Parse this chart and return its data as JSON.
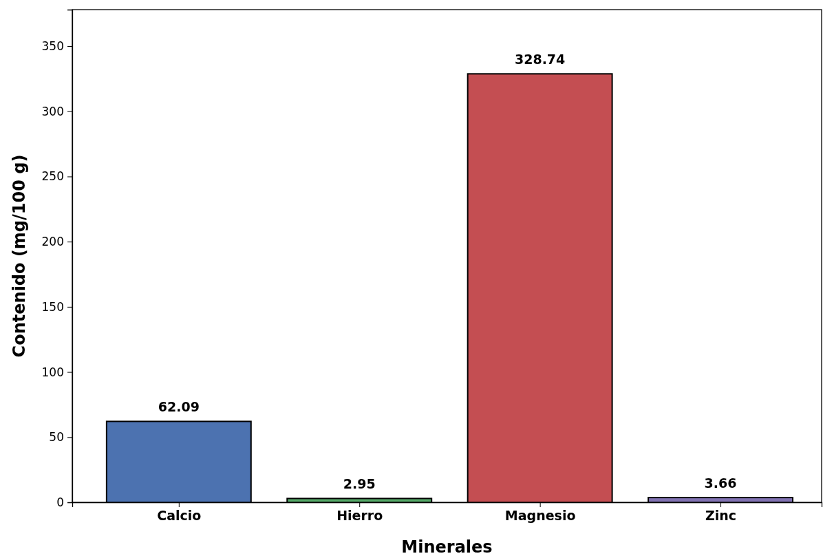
{
  "chart_data": {
    "type": "bar",
    "xlabel": "Minerales",
    "ylabel": "Contenido (mg/100 g)",
    "categories": [
      "Calcio",
      "Hierro",
      "Magnesio",
      "Zinc"
    ],
    "values": [
      62.09,
      2.95,
      328.74,
      3.66
    ],
    "colors": [
      "#4c72b0",
      "#55a868",
      "#c44e52",
      "#8172b2"
    ],
    "ylim": [
      0,
      378
    ],
    "yticks": [
      0,
      50,
      100,
      150,
      200,
      250,
      300,
      350
    ],
    "data_labels": true
  }
}
